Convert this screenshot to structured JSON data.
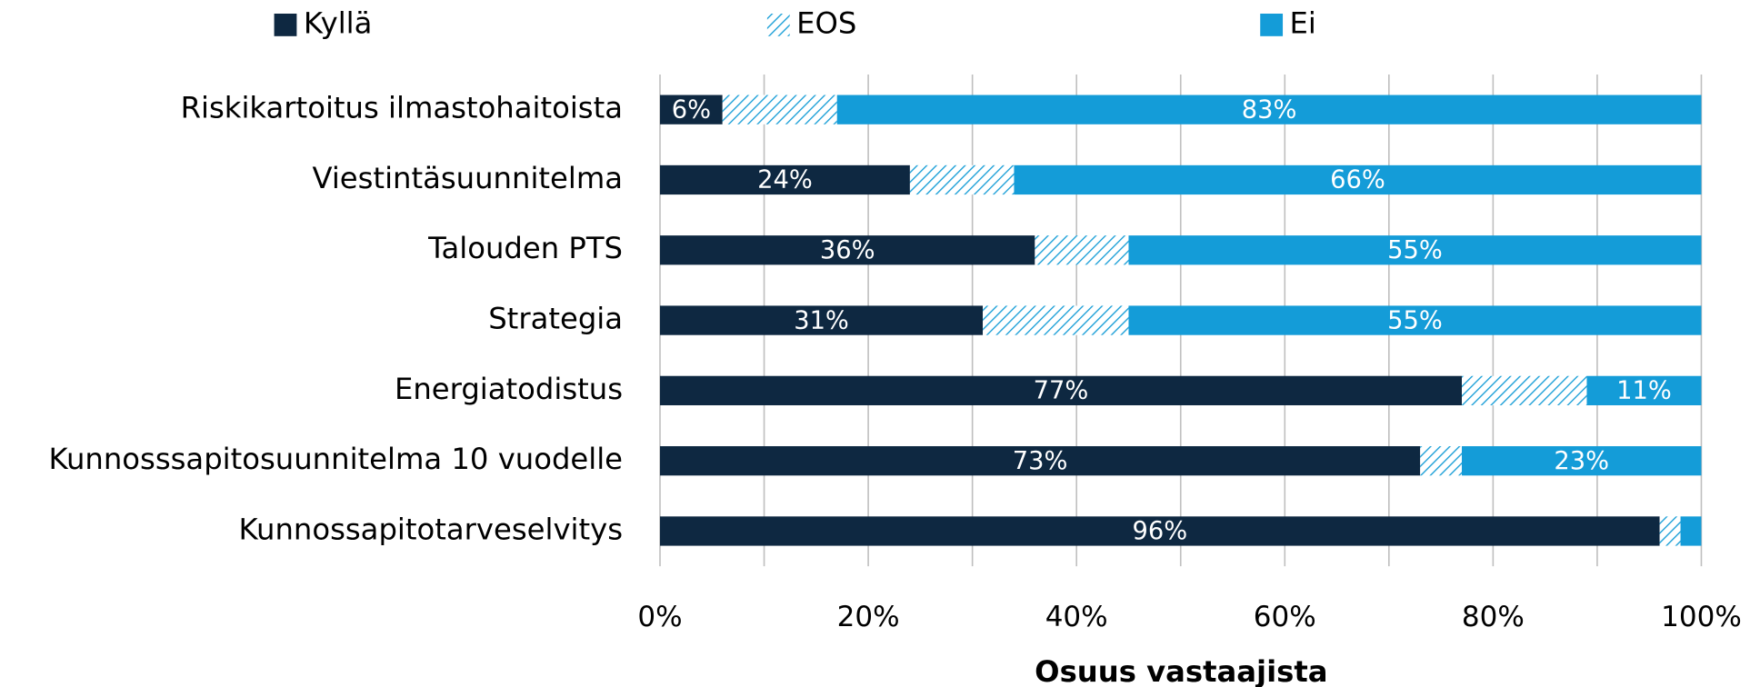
{
  "chart_data": {
    "type": "stacked-barh",
    "categories": [
      "Riskikartoitus ilmastohaitoista",
      "Viestintäsuunnitelma",
      "Talouden PTS",
      "Strategia",
      "Energiatodistus",
      "Kunnosssapitosuunnitelma 10 vuodelle",
      "Kunnossapitotarveselvitys"
    ],
    "series": [
      {
        "name": "Kyllä",
        "color": "#0e2841",
        "values": [
          6,
          24,
          36,
          31,
          77,
          73,
          96
        ],
        "value_labels": [
          "6%",
          "24%",
          "36%",
          "31%",
          "77%",
          "73%",
          "96%"
        ]
      },
      {
        "name": "EOS",
        "color": "#1b9fd7",
        "pattern": "hatch",
        "values": [
          11,
          10,
          9,
          14,
          12,
          4,
          2
        ]
      },
      {
        "name": "Ei",
        "color": "#149cd8",
        "values": [
          83,
          66,
          55,
          55,
          11,
          23,
          2
        ],
        "value_labels": [
          "83%",
          "66%",
          "55%",
          "55%",
          "11%",
          "23%",
          null
        ]
      }
    ],
    "xlim": [
      0,
      100
    ],
    "xticks": [
      {
        "value": 0,
        "label": "0%"
      },
      {
        "value": 20,
        "label": "20%"
      },
      {
        "value": 40,
        "label": "40%"
      },
      {
        "value": 60,
        "label": "60%"
      },
      {
        "value": 80,
        "label": "80%"
      },
      {
        "value": 100,
        "label": "100%"
      }
    ],
    "xminorticks": [
      0,
      10,
      20,
      30,
      40,
      50,
      60,
      70,
      80,
      90,
      100
    ],
    "xlabel": "Osuus vastaajista",
    "grid": true,
    "legend": "top"
  }
}
